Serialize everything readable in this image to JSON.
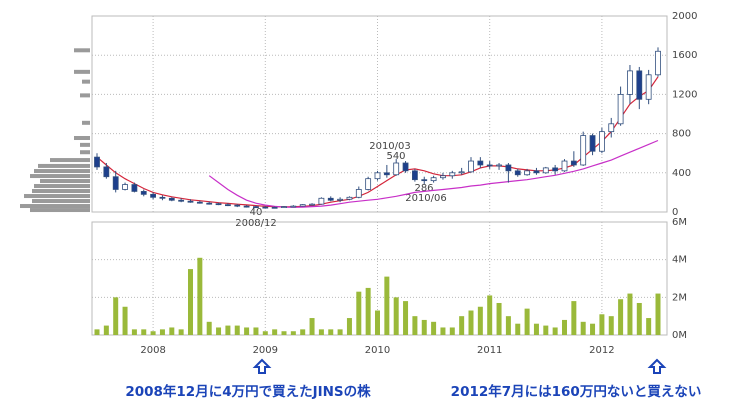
{
  "chart_data": {
    "type": "candlestick",
    "categories": [
      null,
      null,
      null,
      null,
      null,
      null,
      "2008",
      null,
      null,
      null,
      null,
      null,
      null,
      null,
      null,
      null,
      null,
      null,
      "2009",
      null,
      null,
      null,
      null,
      null,
      null,
      null,
      null,
      null,
      null,
      null,
      "2010",
      null,
      null,
      null,
      null,
      null,
      null,
      null,
      null,
      null,
      null,
      null,
      "2011",
      null,
      null,
      null,
      null,
      null,
      null,
      null,
      null,
      null,
      null,
      null,
      "2012",
      null,
      null,
      null,
      null,
      null,
      null
    ],
    "open": [
      560,
      460,
      360,
      230,
      280,
      210,
      180,
      150,
      140,
      120,
      110,
      100,
      90,
      85,
      75,
      70,
      60,
      55,
      50,
      48,
      45,
      55,
      60,
      75,
      80,
      140,
      120,
      130,
      150,
      230,
      340,
      400,
      380,
      500,
      420,
      330,
      320,
      350,
      370,
      400,
      410,
      520,
      480,
      470,
      480,
      420,
      380,
      420,
      400,
      450,
      420,
      520,
      480,
      780,
      620,
      820,
      900,
      1200,
      1440,
      1150,
      1400
    ],
    "high": [
      600,
      500,
      420,
      300,
      300,
      230,
      200,
      170,
      150,
      140,
      130,
      115,
      105,
      95,
      90,
      80,
      70,
      65,
      60,
      55,
      60,
      70,
      80,
      90,
      150,
      160,
      150,
      160,
      260,
      360,
      420,
      480,
      540,
      520,
      440,
      360,
      370,
      400,
      420,
      450,
      560,
      560,
      520,
      500,
      500,
      440,
      440,
      450,
      460,
      480,
      540,
      620,
      820,
      800,
      860,
      960,
      1280,
      1500,
      1480,
      1450,
      1680
    ],
    "low": [
      430,
      340,
      200,
      220,
      200,
      160,
      130,
      120,
      110,
      100,
      95,
      85,
      75,
      70,
      60,
      50,
      45,
      40,
      42,
      40,
      42,
      50,
      55,
      70,
      75,
      110,
      100,
      120,
      140,
      220,
      320,
      350,
      370,
      400,
      310,
      286,
      300,
      330,
      340,
      380,
      400,
      450,
      440,
      430,
      300,
      360,
      370,
      380,
      390,
      380,
      410,
      460,
      470,
      580,
      600,
      760,
      880,
      1100,
      1050,
      1100,
      1380
    ],
    "close": [
      460,
      360,
      230,
      280,
      210,
      180,
      150,
      140,
      120,
      110,
      100,
      90,
      85,
      75,
      70,
      60,
      55,
      50,
      48,
      45,
      55,
      60,
      75,
      80,
      140,
      120,
      130,
      150,
      230,
      340,
      400,
      380,
      500,
      420,
      330,
      320,
      350,
      370,
      400,
      410,
      520,
      480,
      470,
      480,
      420,
      380,
      420,
      400,
      450,
      420,
      520,
      480,
      780,
      620,
      820,
      900,
      1200,
      1440,
      1150,
      1400,
      1640
    ],
    "up_color": "#ffffff",
    "down_color": "#1d3f8c",
    "edge_color": "#33507f",
    "lines": [
      {
        "color": "#d4253a",
        "values": [
          560,
          480,
          400,
          340,
          290,
          240,
          200,
          175,
          155,
          140,
          125,
          115,
          105,
          95,
          88,
          80,
          72,
          65,
          58,
          54,
          52,
          54,
          58,
          64,
          80,
          100,
          115,
          130,
          160,
          200,
          260,
          320,
          380,
          430,
          440,
          420,
          390,
          370,
          370,
          380,
          410,
          450,
          470,
          470,
          460,
          440,
          430,
          420,
          420,
          430,
          450,
          480,
          560,
          640,
          720,
          820,
          960,
          1100,
          1180,
          1240,
          1380
        ]
      },
      {
        "color": "#c830c8",
        "values": [
          null,
          null,
          null,
          null,
          null,
          null,
          null,
          null,
          null,
          null,
          null,
          null,
          370,
          300,
          230,
          170,
          120,
          90,
          70,
          58,
          50,
          48,
          50,
          55,
          60,
          70,
          85,
          100,
          110,
          120,
          130,
          145,
          160,
          180,
          200,
          210,
          220,
          230,
          240,
          250,
          265,
          275,
          290,
          300,
          310,
          320,
          330,
          345,
          360,
          375,
          395,
          415,
          440,
          470,
          500,
          530,
          570,
          610,
          650,
          690,
          730
        ]
      }
    ],
    "ylim": [
      0,
      2000
    ],
    "yticks": [
      0,
      400,
      800,
      1200,
      1600,
      2000
    ],
    "grid": true,
    "volume": {
      "color": "#9ab93a",
      "values": [
        300000,
        500000,
        2000000,
        1500000,
        300000,
        300000,
        200000,
        300000,
        400000,
        300000,
        3500000,
        4100000,
        700000,
        400000,
        500000,
        500000,
        400000,
        400000,
        200000,
        300000,
        200000,
        200000,
        300000,
        900000,
        300000,
        300000,
        300000,
        900000,
        2300000,
        2500000,
        1300000,
        3100000,
        2000000,
        1800000,
        1000000,
        800000,
        700000,
        400000,
        400000,
        1000000,
        1300000,
        1500000,
        2100000,
        1700000,
        1000000,
        600000,
        1400000,
        600000,
        500000,
        400000,
        800000,
        1800000,
        700000,
        600000,
        1100000,
        1000000,
        1900000,
        2200000,
        1700000,
        900000,
        2200000
      ],
      "ylim": [
        0,
        6000000
      ],
      "yticks": [
        {
          "value": 0,
          "label": "0M"
        },
        {
          "value": 2000000,
          "label": "2M"
        },
        {
          "value": 4000000,
          "label": "4M"
        },
        {
          "value": 6000000,
          "label": "6M"
        }
      ]
    },
    "price_profile": {
      "color": "#9a9a9a",
      "levels": [
        1650,
        1430,
        1330,
        1190,
        910,
        755,
        685,
        610,
        530,
        470,
        418,
        367,
        316,
        265,
        214,
        163,
        112,
        61,
        20
      ],
      "values": [
        16,
        16,
        8,
        10,
        8,
        16,
        10,
        10,
        40,
        52,
        56,
        60,
        50,
        56,
        58,
        66,
        58,
        70,
        60
      ]
    },
    "annotations": [
      "2010/03",
      "540",
      "286",
      "2010/06",
      "40",
      "2008/12"
    ],
    "captions": [
      "2008年12月に4万円で買えたJINSの株",
      "2012年7月には160万円ないと買えない"
    ]
  }
}
